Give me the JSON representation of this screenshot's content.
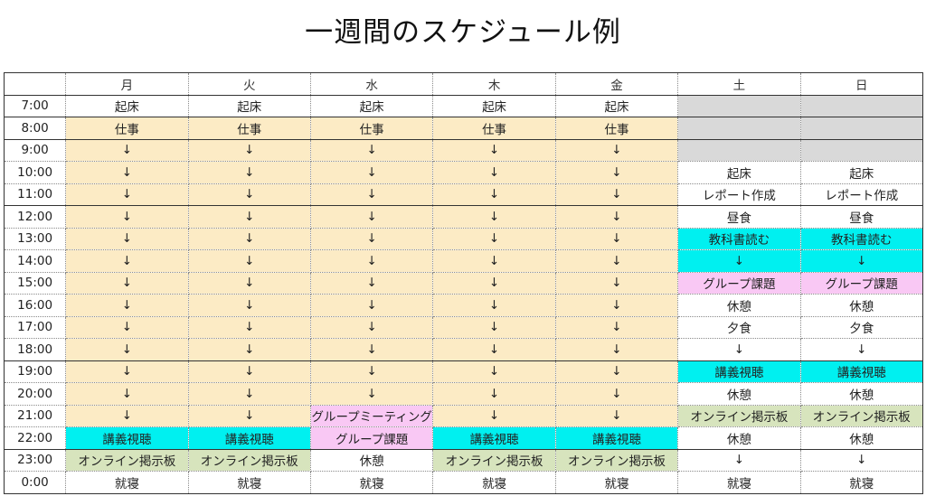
{
  "title": "一週間のスケジュール例",
  "colors": {
    "work": "#fcebc5",
    "gray": "#d9d9d9",
    "cyan": "#00f0f0",
    "pink": "#f9c8f4",
    "green": "#d7e4bd",
    "lavender": "#dde3f4",
    "none": "#ffffff"
  },
  "days": [
    "月",
    "火",
    "水",
    "木",
    "金",
    "土",
    "日"
  ],
  "rows": [
    {
      "time": "7:00",
      "cells": [
        [
          "起床",
          "none"
        ],
        [
          "起床",
          "none"
        ],
        [
          "起床",
          "none"
        ],
        [
          "起床",
          "none"
        ],
        [
          "起床",
          "none"
        ],
        [
          "",
          "gray"
        ],
        [
          "",
          "gray"
        ]
      ]
    },
    {
      "time": "8:00",
      "cells": [
        [
          "仕事",
          "work"
        ],
        [
          "仕事",
          "work"
        ],
        [
          "仕事",
          "work"
        ],
        [
          "仕事",
          "work"
        ],
        [
          "仕事",
          "work"
        ],
        [
          "",
          "gray"
        ],
        [
          "",
          "gray"
        ]
      ]
    },
    {
      "time": "9:00",
      "cells": [
        [
          "↓",
          "work"
        ],
        [
          "↓",
          "work"
        ],
        [
          "↓",
          "work"
        ],
        [
          "↓",
          "work"
        ],
        [
          "↓",
          "work"
        ],
        [
          "",
          "gray"
        ],
        [
          "",
          "gray"
        ]
      ]
    },
    {
      "time": "10:00",
      "cells": [
        [
          "↓",
          "work"
        ],
        [
          "↓",
          "work"
        ],
        [
          "↓",
          "work"
        ],
        [
          "↓",
          "work"
        ],
        [
          "↓",
          "work"
        ],
        [
          "起床",
          "none"
        ],
        [
          "起床",
          "none"
        ]
      ]
    },
    {
      "time": "11:00",
      "cells": [
        [
          "↓",
          "work"
        ],
        [
          "↓",
          "work"
        ],
        [
          "↓",
          "work"
        ],
        [
          "↓",
          "work"
        ],
        [
          "↓",
          "work"
        ],
        [
          "レポート作成",
          "lavender"
        ],
        [
          "レポート作成",
          "lavender"
        ]
      ]
    },
    {
      "time": "12:00",
      "cells": [
        [
          "↓",
          "work"
        ],
        [
          "↓",
          "work"
        ],
        [
          "↓",
          "work"
        ],
        [
          "↓",
          "work"
        ],
        [
          "↓",
          "work"
        ],
        [
          "昼食",
          "none"
        ],
        [
          "昼食",
          "none"
        ]
      ]
    },
    {
      "time": "13:00",
      "cells": [
        [
          "↓",
          "work"
        ],
        [
          "↓",
          "work"
        ],
        [
          "↓",
          "work"
        ],
        [
          "↓",
          "work"
        ],
        [
          "↓",
          "work"
        ],
        [
          "教科書読む",
          "cyan"
        ],
        [
          "教科書読む",
          "cyan"
        ]
      ]
    },
    {
      "time": "14:00",
      "cells": [
        [
          "↓",
          "work"
        ],
        [
          "↓",
          "work"
        ],
        [
          "↓",
          "work"
        ],
        [
          "↓",
          "work"
        ],
        [
          "↓",
          "work"
        ],
        [
          "↓",
          "cyan"
        ],
        [
          "↓",
          "cyan"
        ]
      ]
    },
    {
      "time": "15:00",
      "cells": [
        [
          "↓",
          "work"
        ],
        [
          "↓",
          "work"
        ],
        [
          "↓",
          "work"
        ],
        [
          "↓",
          "work"
        ],
        [
          "↓",
          "work"
        ],
        [
          "グループ課題",
          "pink"
        ],
        [
          "グループ課題",
          "pink"
        ]
      ]
    },
    {
      "time": "16:00",
      "cells": [
        [
          "↓",
          "work"
        ],
        [
          "↓",
          "work"
        ],
        [
          "↓",
          "work"
        ],
        [
          "↓",
          "work"
        ],
        [
          "↓",
          "work"
        ],
        [
          "休憩",
          "none"
        ],
        [
          "休憩",
          "none"
        ]
      ]
    },
    {
      "time": "17:00",
      "cells": [
        [
          "↓",
          "work"
        ],
        [
          "↓",
          "work"
        ],
        [
          "↓",
          "work"
        ],
        [
          "↓",
          "work"
        ],
        [
          "↓",
          "work"
        ],
        [
          "夕食",
          "none"
        ],
        [
          "夕食",
          "none"
        ]
      ]
    },
    {
      "time": "18:00",
      "cells": [
        [
          "↓",
          "work"
        ],
        [
          "↓",
          "work"
        ],
        [
          "↓",
          "work"
        ],
        [
          "↓",
          "work"
        ],
        [
          "↓",
          "work"
        ],
        [
          "↓",
          "none"
        ],
        [
          "↓",
          "none"
        ]
      ]
    },
    {
      "time": "19:00",
      "cells": [
        [
          "↓",
          "work"
        ],
        [
          "↓",
          "work"
        ],
        [
          "↓",
          "work"
        ],
        [
          "↓",
          "work"
        ],
        [
          "↓",
          "work"
        ],
        [
          "講義視聴",
          "cyan"
        ],
        [
          "講義視聴",
          "cyan"
        ]
      ]
    },
    {
      "time": "20:00",
      "cells": [
        [
          "↓",
          "work"
        ],
        [
          "↓",
          "work"
        ],
        [
          "↓",
          "work"
        ],
        [
          "↓",
          "work"
        ],
        [
          "↓",
          "work"
        ],
        [
          "休憩",
          "none"
        ],
        [
          "休憩",
          "none"
        ]
      ]
    },
    {
      "time": "21:00",
      "cells": [
        [
          "↓",
          "work"
        ],
        [
          "↓",
          "work"
        ],
        [
          "グループミーティング",
          "pink"
        ],
        [
          "↓",
          "work"
        ],
        [
          "↓",
          "work"
        ],
        [
          "オンライン掲示板",
          "green"
        ],
        [
          "オンライン掲示板",
          "green"
        ]
      ]
    },
    {
      "time": "22:00",
      "cells": [
        [
          "講義視聴",
          "cyan"
        ],
        [
          "講義視聴",
          "cyan"
        ],
        [
          "グループ課題",
          "pink"
        ],
        [
          "講義視聴",
          "cyan"
        ],
        [
          "講義視聴",
          "cyan"
        ],
        [
          "休憩",
          "none"
        ],
        [
          "休憩",
          "none"
        ]
      ]
    },
    {
      "time": "23:00",
      "cells": [
        [
          "オンライン掲示板",
          "green"
        ],
        [
          "オンライン掲示板",
          "green"
        ],
        [
          "休憩",
          "none"
        ],
        [
          "オンライン掲示板",
          "green"
        ],
        [
          "オンライン掲示板",
          "green"
        ],
        [
          "↓",
          "none"
        ],
        [
          "↓",
          "none"
        ]
      ]
    },
    {
      "time": "0:00",
      "cells": [
        [
          "就寝",
          "none"
        ],
        [
          "就寝",
          "none"
        ],
        [
          "就寝",
          "none"
        ],
        [
          "就寝",
          "none"
        ],
        [
          "就寝",
          "none"
        ],
        [
          "就寝",
          "none"
        ],
        [
          "就寝",
          "none"
        ]
      ]
    }
  ]
}
